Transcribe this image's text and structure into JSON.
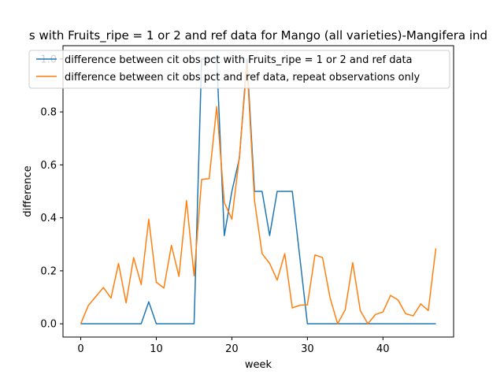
{
  "chart_data": {
    "type": "line",
    "title": "s with Fruits_ripe = 1 or 2 and ref data for Mango (all varieties)-Mangifera ind",
    "xlabel": "week",
    "ylabel": "difference",
    "xlim": [
      -2.35,
      49.35
    ],
    "ylim": [
      -0.05,
      1.05
    ],
    "xticks": [
      0,
      10,
      20,
      30,
      40
    ],
    "yticks": [
      0.0,
      0.2,
      0.4,
      0.6,
      0.8,
      1.0
    ],
    "xtick_labels": [
      "0",
      "10",
      "20",
      "30",
      "40"
    ],
    "ytick_labels": [
      "0.0",
      "0.2",
      "0.4",
      "0.6",
      "0.8",
      "1.0"
    ],
    "grid": false,
    "legend_position": "top-left",
    "series": [
      {
        "name": "difference between cit obs pct with Fruits_ripe = 1 or 2 and ref data",
        "color": "#1f77b4",
        "x": [
          0,
          1,
          2,
          3,
          4,
          5,
          6,
          7,
          8,
          9,
          10,
          11,
          12,
          13,
          14,
          15,
          16,
          17,
          18,
          19,
          20,
          21,
          22,
          23,
          24,
          25,
          26,
          27,
          28,
          29,
          30,
          31,
          32,
          33,
          34,
          35,
          36,
          37,
          38,
          39,
          40,
          41,
          42,
          43,
          44,
          45,
          46,
          47
        ],
        "values": [
          0,
          0,
          0,
          0,
          0,
          0,
          0,
          0,
          0,
          0.083,
          0,
          0,
          0,
          0,
          0,
          0,
          1.0,
          1.0,
          1.0,
          0.333,
          0.5,
          0.625,
          1.0,
          0.5,
          0.5,
          0.333,
          0.5,
          0.5,
          0.5,
          0.25,
          0,
          0,
          0,
          0,
          0,
          0,
          0,
          0,
          0,
          0,
          0,
          0,
          0,
          0,
          0,
          0,
          0,
          0
        ]
      },
      {
        "name": "difference between cit obs pct and ref data, repeat observations only",
        "color": "#ff7f0e",
        "x": [
          0,
          1,
          2,
          3,
          4,
          5,
          6,
          7,
          8,
          9,
          10,
          11,
          12,
          13,
          14,
          15,
          16,
          17,
          18,
          19,
          20,
          21,
          22,
          23,
          24,
          25,
          26,
          27,
          28,
          29,
          30,
          31,
          32,
          33,
          34,
          35,
          36,
          37,
          38,
          39,
          40,
          41,
          42,
          43,
          44,
          45,
          46,
          47
        ],
        "values": [
          0,
          0.069,
          0.103,
          0.137,
          0.097,
          0.228,
          0.079,
          0.25,
          0.148,
          0.395,
          0.157,
          0.135,
          0.296,
          0.179,
          0.465,
          0.181,
          0.545,
          0.548,
          0.82,
          0.458,
          0.395,
          0.63,
          0.98,
          0.465,
          0.265,
          0.228,
          0.165,
          0.265,
          0.06,
          0.07,
          0.072,
          0.26,
          0.25,
          0.098,
          0,
          0.053,
          0.231,
          0.05,
          0,
          0.035,
          0.045,
          0.107,
          0.09,
          0.038,
          0.03,
          0.075,
          0.05,
          0.285
        ]
      }
    ]
  }
}
